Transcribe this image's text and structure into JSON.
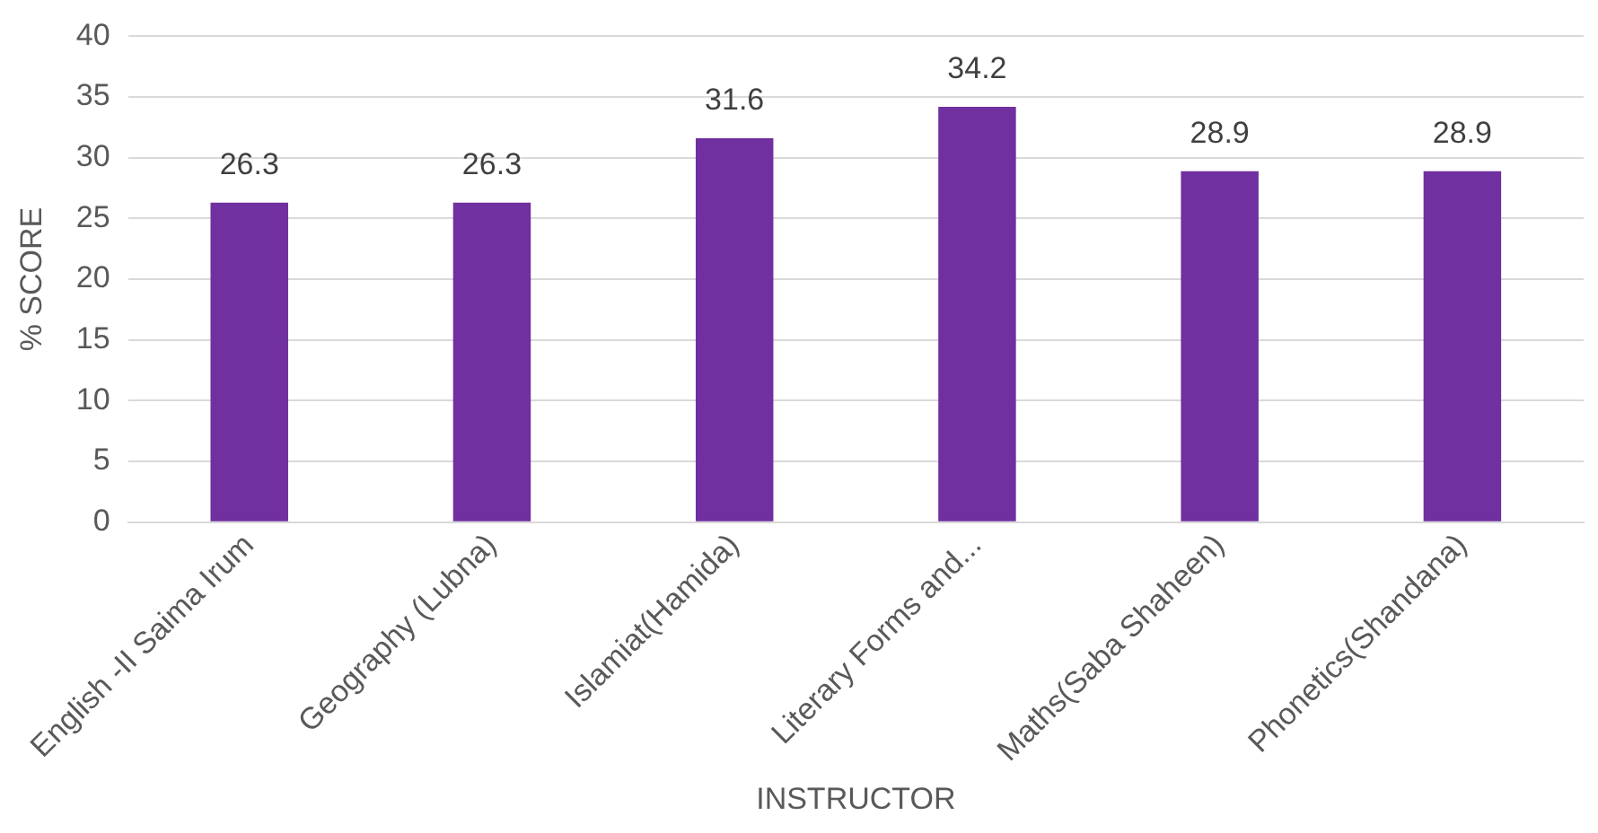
{
  "chart_data": {
    "type": "bar",
    "xlabel": "INSTRUCTOR",
    "ylabel": "% SCORE",
    "categories": [
      "English -II Saima Irum",
      "Geography (Lubna)",
      "Islamiat(Hamida)",
      "Literary Forms and...",
      "Maths(Saba Shaheen)",
      "Phonetics(Shandana)"
    ],
    "values": [
      26.3,
      26.3,
      31.6,
      34.2,
      28.9,
      28.9
    ],
    "color": "#7030a0",
    "ylim": [
      0,
      40
    ],
    "yticks": [
      0,
      5,
      10,
      15,
      20,
      25,
      30,
      35,
      40
    ],
    "grid": "y",
    "data_labels": true
  }
}
